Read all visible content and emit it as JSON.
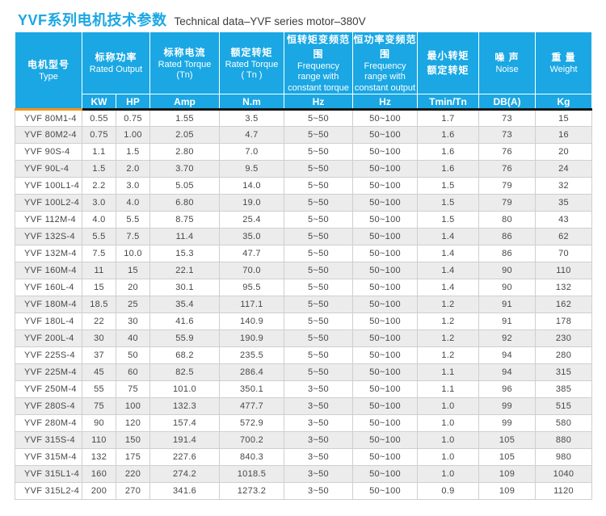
{
  "page": {
    "title_zh": "YVF系列电机技术参数",
    "title_en": "Technical data–YVF series motor–380V"
  },
  "colors": {
    "header_blue": "#1aa7e3",
    "title_blue": "#1aa7e3",
    "accent_orange": "#f7941e",
    "divider_black": "#161616",
    "row_stripe": "#ececec",
    "grid_line": "#cfcfcf",
    "text_dark": "#474747"
  },
  "table": {
    "type_header": {
      "zh": "电机型号",
      "en": "Type"
    },
    "groups": {
      "rated_output": {
        "zh": "标称功率",
        "en": "Rated Output"
      },
      "rated_current": {
        "zh": "标称电流",
        "en": "Rated Torque",
        "en2": "(Tn)"
      },
      "rated_torque": {
        "zh": "额定转矩",
        "en": "Rated Torque",
        "en2": "( Tn )"
      },
      "freq_constant_torque": {
        "zh": "恒转矩变频范围",
        "en": "Frequency range with constant torque"
      },
      "freq_constant_output": {
        "zh": "恒功率变频范围",
        "en": "Frequency range with constant output"
      },
      "min_torque_ratio": {
        "zh": "最小转矩",
        "zh2": "额定转矩"
      },
      "noise": {
        "zh": "噪 声",
        "en": "Noise"
      },
      "weight": {
        "zh": "重 量",
        "en": "Weight"
      }
    },
    "units": [
      "KW",
      "HP",
      "Amp",
      "N.m",
      "Hz",
      "Hz",
      "Tmin/Tn",
      "DB(A)",
      "Kg"
    ],
    "rows": [
      [
        "YVF 80M1-4",
        "0.55",
        "0.75",
        "1.55",
        "3.5",
        "5~50",
        "50~100",
        "1.7",
        "73",
        "15"
      ],
      [
        "YVF 80M2-4",
        "0.75",
        "1.00",
        "2.05",
        "4.7",
        "5~50",
        "50~100",
        "1.6",
        "73",
        "16"
      ],
      [
        "YVF 90S-4",
        "1.1",
        "1.5",
        "2.80",
        "7.0",
        "5~50",
        "50~100",
        "1.6",
        "76",
        "20"
      ],
      [
        "YVF 90L-4",
        "1.5",
        "2.0",
        "3.70",
        "9.5",
        "5~50",
        "50~100",
        "1.6",
        "76",
        "24"
      ],
      [
        "YVF 100L1-4",
        "2.2",
        "3.0",
        "5.05",
        "14.0",
        "5~50",
        "50~100",
        "1.5",
        "79",
        "32"
      ],
      [
        "YVF 100L2-4",
        "3.0",
        "4.0",
        "6.80",
        "19.0",
        "5~50",
        "50~100",
        "1.5",
        "79",
        "35"
      ],
      [
        "YVF 112M-4",
        "4.0",
        "5.5",
        "8.75",
        "25.4",
        "5~50",
        "50~100",
        "1.5",
        "80",
        "43"
      ],
      [
        "YVF 132S-4",
        "5.5",
        "7.5",
        "11.4",
        "35.0",
        "5~50",
        "50~100",
        "1.4",
        "86",
        "62"
      ],
      [
        "YVF 132M-4",
        "7.5",
        "10.0",
        "15.3",
        "47.7",
        "5~50",
        "50~100",
        "1.4",
        "86",
        "70"
      ],
      [
        "YVF 160M-4",
        "11",
        "15",
        "22.1",
        "70.0",
        "5~50",
        "50~100",
        "1.4",
        "90",
        "110"
      ],
      [
        "YVF 160L-4",
        "15",
        "20",
        "30.1",
        "95.5",
        "5~50",
        "50~100",
        "1.4",
        "90",
        "132"
      ],
      [
        "YVF 180M-4",
        "18.5",
        "25",
        "35.4",
        "117.1",
        "5~50",
        "50~100",
        "1.2",
        "91",
        "162"
      ],
      [
        "YVF 180L-4",
        "22",
        "30",
        "41.6",
        "140.9",
        "5~50",
        "50~100",
        "1.2",
        "91",
        "178"
      ],
      [
        "YVF 200L-4",
        "30",
        "40",
        "55.9",
        "190.9",
        "5~50",
        "50~100",
        "1.2",
        "92",
        "230"
      ],
      [
        "YVF 225S-4",
        "37",
        "50",
        "68.2",
        "235.5",
        "5~50",
        "50~100",
        "1.2",
        "94",
        "280"
      ],
      [
        "YVF 225M-4",
        "45",
        "60",
        "82.5",
        "286.4",
        "5~50",
        "50~100",
        "1.1",
        "94",
        "315"
      ],
      [
        "YVF 250M-4",
        "55",
        "75",
        "101.0",
        "350.1",
        "3~50",
        "50~100",
        "1.1",
        "96",
        "385"
      ],
      [
        "YVF 280S-4",
        "75",
        "100",
        "132.3",
        "477.7",
        "3~50",
        "50~100",
        "1.0",
        "99",
        "515"
      ],
      [
        "YVF 280M-4",
        "90",
        "120",
        "157.4",
        "572.9",
        "3~50",
        "50~100",
        "1.0",
        "99",
        "580"
      ],
      [
        "YVF 315S-4",
        "110",
        "150",
        "191.4",
        "700.2",
        "3~50",
        "50~100",
        "1.0",
        "105",
        "880"
      ],
      [
        "YVF 315M-4",
        "132",
        "175",
        "227.6",
        "840.3",
        "3~50",
        "50~100",
        "1.0",
        "105",
        "980"
      ],
      [
        "YVF 315L1-4",
        "160",
        "220",
        "274.2",
        "1018.5",
        "3~50",
        "50~100",
        "1.0",
        "109",
        "1040"
      ],
      [
        "YVF 315L2-4",
        "200",
        "270",
        "341.6",
        "1273.2",
        "3~50",
        "50~100",
        "0.9",
        "109",
        "1120"
      ]
    ]
  }
}
